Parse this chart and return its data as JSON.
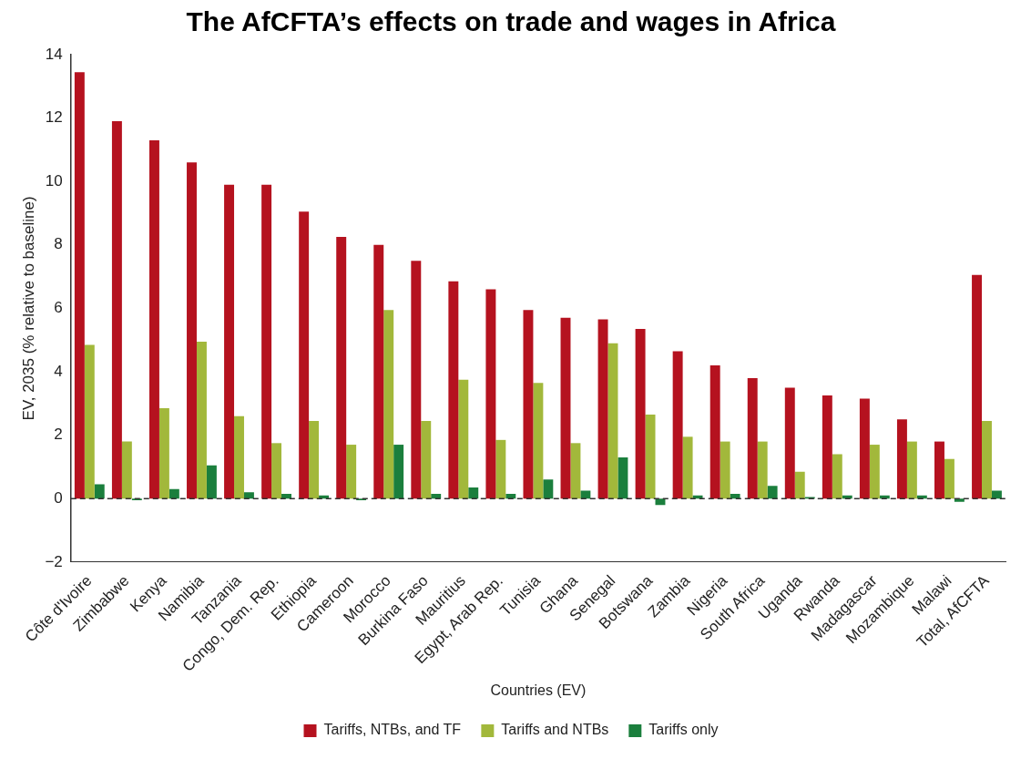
{
  "chart_data": {
    "type": "bar",
    "title": "The AfCFTA’s effects on trade and wages in Africa",
    "xlabel": "Countries (EV)",
    "ylabel": "EV, 2035 (% relative to baseline)",
    "categories": [
      "Côte d'Ivoire",
      "Zimbabwe",
      "Kenya",
      "Namibia",
      "Tanzania",
      "Congo, Dem. Rep.",
      "Ethiopia",
      "Cameroon",
      "Morocco",
      "Burkina Faso",
      "Mauritius",
      "Egypt, Arab Rep.",
      "Tunisia",
      "Ghana",
      "Senegal",
      "Botswana",
      "Zambia",
      "Nigeria",
      "South Africa",
      "Uganda",
      "Rwanda",
      "Madagascar",
      "Mozambique",
      "Malawi",
      "Total, AfCFTA"
    ],
    "series": [
      {
        "name": "Tariffs, NTBs, and TF",
        "color": "#b5121f",
        "values": [
          13.45,
          11.9,
          11.3,
          10.6,
          9.9,
          9.9,
          9.05,
          8.25,
          8.0,
          7.5,
          6.85,
          6.6,
          5.95,
          5.7,
          5.65,
          5.35,
          4.65,
          4.2,
          3.8,
          3.5,
          3.25,
          3.15,
          2.5,
          1.8,
          7.05
        ]
      },
      {
        "name": "Tariffs and NTBs",
        "color": "#a2b83b",
        "values": [
          4.85,
          1.8,
          2.85,
          4.95,
          2.6,
          1.75,
          2.45,
          1.7,
          5.95,
          2.45,
          3.75,
          1.85,
          3.65,
          1.75,
          4.9,
          2.65,
          1.95,
          1.8,
          1.8,
          0.85,
          1.4,
          1.7,
          1.8,
          1.25,
          2.45
        ]
      },
      {
        "name": "Tariffs only",
        "color": "#1b7f3d",
        "values": [
          0.45,
          -0.05,
          0.3,
          1.05,
          0.2,
          0.15,
          0.1,
          -0.05,
          1.7,
          0.15,
          0.35,
          0.15,
          0.6,
          0.25,
          1.3,
          -0.2,
          0.1,
          0.15,
          0.4,
          0.05,
          0.1,
          0.1,
          0.1,
          -0.1,
          0.25
        ]
      }
    ],
    "ylim": [
      -2,
      14
    ],
    "yticks": [
      {
        "value": -2,
        "label": "−2"
      },
      0,
      2,
      4,
      6,
      8,
      10,
      12,
      14
    ],
    "ref_lines": [
      {
        "axis": "y",
        "value": 0,
        "color": "#333333",
        "line_style": "dashed"
      }
    ],
    "grid": false,
    "legend": "bottom"
  }
}
